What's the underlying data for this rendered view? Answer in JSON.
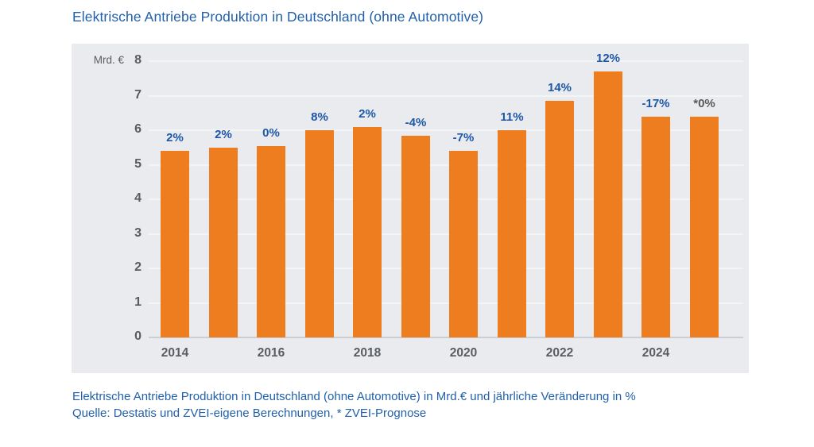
{
  "title": "Elektrische Antriebe Produktion in Deutschland (ohne Automotive)",
  "caption": {
    "line1": "Elektrische Antriebe Produktion in Deutschland (ohne Automotive) in Mrd.€ und jährliche Veränderung in %",
    "line2": "Quelle: Destatis und ZVEI-eigene Berechnungen, * ZVEI-Prognose"
  },
  "chart_data": {
    "type": "bar",
    "title": "Elektrische Antriebe Produktion in Deutschland (ohne Automotive)",
    "unit_label": "Mrd. €",
    "ylabel": "Mrd. €",
    "xlabel": "",
    "ylim": [
      0,
      8
    ],
    "grid": true,
    "y_ticks": [
      0,
      1,
      2,
      3,
      4,
      5,
      6,
      7,
      8
    ],
    "x_tick_labels": [
      "2014",
      "2016",
      "2018",
      "2020",
      "2022",
      "2024"
    ],
    "bars": [
      {
        "year": "2014",
        "value": 5.4,
        "change": "2%",
        "forecast": false
      },
      {
        "year": "2015",
        "value": 5.5,
        "change": "2%",
        "forecast": false
      },
      {
        "year": "2016",
        "value": 5.55,
        "change": "0%",
        "forecast": false
      },
      {
        "year": "2017",
        "value": 6.0,
        "change": "8%",
        "forecast": false
      },
      {
        "year": "2018",
        "value": 6.1,
        "change": "2%",
        "forecast": false
      },
      {
        "year": "2019",
        "value": 5.85,
        "change": "-4%",
        "forecast": false
      },
      {
        "year": "2020",
        "value": 5.4,
        "change": "-7%",
        "forecast": false
      },
      {
        "year": "2021",
        "value": 6.0,
        "change": "11%",
        "forecast": false
      },
      {
        "year": "2022",
        "value": 6.85,
        "change": "14%",
        "forecast": false
      },
      {
        "year": "2023",
        "value": 7.7,
        "change": "12%",
        "forecast": false
      },
      {
        "year": "2024",
        "value": 6.4,
        "change": "-17%",
        "forecast": false
      },
      {
        "year": "2025",
        "value": 6.4,
        "change": "*0%",
        "forecast": true
      }
    ],
    "colors": {
      "bar": "#ED7D1F",
      "change_label_blue": "#1E57A6",
      "change_label_forecast_gray": "#595959",
      "panel_background": "#E9EBEE",
      "gridline": "#F3F4F6",
      "baseline": "#CBCFD4",
      "axis_text": "#595C60",
      "title_blue": "#2160AB"
    }
  }
}
